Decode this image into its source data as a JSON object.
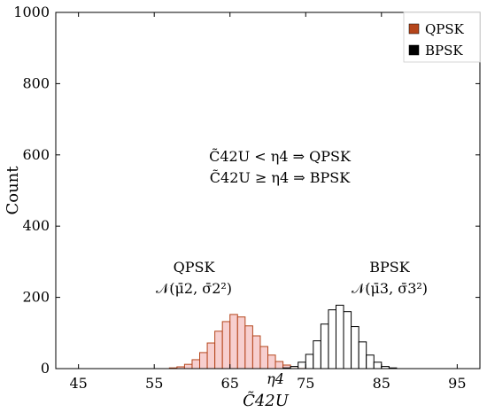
{
  "chart_data": {
    "type": "bar",
    "xlabel": "C̃42U",
    "ylabel": "Count",
    "xlim": [
      42,
      98
    ],
    "ylim": [
      0,
      1000
    ],
    "xticks": [
      45,
      55,
      65,
      75,
      85,
      95
    ],
    "yticks": [
      0,
      200,
      400,
      600,
      800,
      1000
    ],
    "bin_width": 1,
    "series": [
      {
        "name": "QPSK",
        "color": "#b5451b",
        "fill": "#f6c7c7",
        "centers": [
          57.5,
          58.5,
          59.5,
          60.5,
          61.5,
          62.5,
          63.5,
          64.5,
          65.5,
          66.5,
          67.5,
          68.5,
          69.5,
          70.5,
          71.5,
          72.5,
          73.5,
          74.5
        ],
        "values": [
          2,
          5,
          12,
          25,
          45,
          72,
          105,
          132,
          152,
          145,
          120,
          92,
          62,
          38,
          20,
          10,
          4,
          2
        ]
      },
      {
        "name": "BPSK",
        "color": "#000000",
        "fill": "#ffffff",
        "centers": [
          72.5,
          73.5,
          74.5,
          75.5,
          76.5,
          77.5,
          78.5,
          79.5,
          80.5,
          81.5,
          82.5,
          83.5,
          84.5,
          85.5,
          86.5
        ],
        "values": [
          2,
          6,
          18,
          40,
          78,
          125,
          165,
          178,
          160,
          118,
          75,
          38,
          18,
          6,
          2
        ]
      }
    ],
    "annotations": {
      "rule_line1": "C̃42U < η4 ⇒ QPSK",
      "rule_line2": "C̃42U ≥ η4 ⇒ BPSK",
      "qpsk_label": "QPSK",
      "qpsk_dist": "𝒩(μ̄2, σ̄2²)",
      "bpsk_label": "BPSK",
      "bpsk_dist": "𝒩(μ̄3, σ̄3²)",
      "eta_label": "η4",
      "eta_value": 71
    },
    "legend": {
      "position": "top-right",
      "items": [
        {
          "label": "QPSK",
          "color": "#b5451b"
        },
        {
          "label": "BPSK",
          "color": "#000000"
        }
      ]
    }
  }
}
